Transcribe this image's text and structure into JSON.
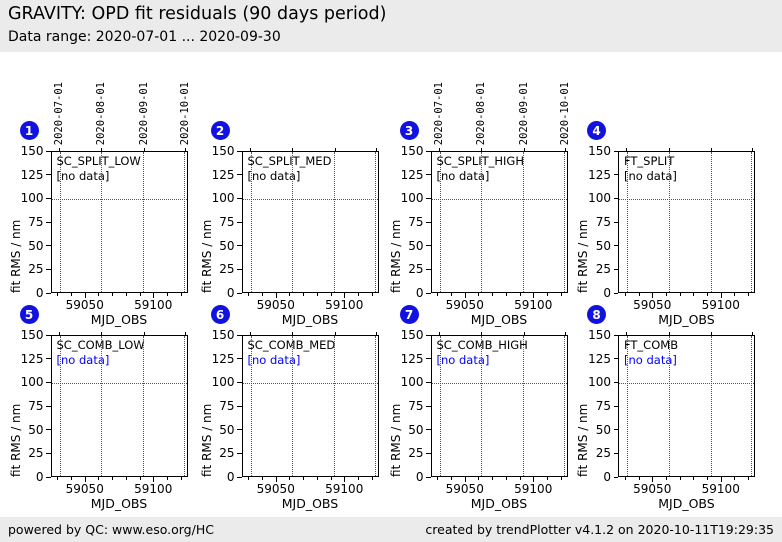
{
  "header": {
    "title": "GRAVITY: OPD fit residuals (90 days period)",
    "subtitle": "Data range: 2020-07-01 ... 2020-09-30"
  },
  "footer": {
    "left": "powered by QC: www.eso.org/HC",
    "right": "created by trendPlotter v4.1.2 on 2020-10-11T19:29:35"
  },
  "colors": {
    "badge_blue": "#1212e0",
    "nodata_blue": "#0000ff",
    "strip_gray": "#ebebeb",
    "grid_gray": "#555555"
  },
  "chart_data": [
    {
      "panel_number": 1,
      "type": "scatter",
      "title": "SC_SPLIT_LOW",
      "annotation": "[no data]",
      "annotation_color": "#000000",
      "x": [],
      "y": [],
      "xlabel": "MJD_OBS",
      "ylabel": "fit RMS / nm",
      "xlim": [
        59025,
        59125
      ],
      "ylim": [
        0,
        150
      ],
      "xticks": [
        59050,
        59100
      ],
      "xticks_minor": [
        59030,
        59040,
        59050,
        59060,
        59070,
        59080,
        59090,
        59100,
        59110,
        59120
      ],
      "yticks": [
        0,
        25,
        50,
        75,
        100,
        125,
        150
      ],
      "month_lines_mjd": [
        59031,
        59062,
        59093,
        59123
      ],
      "top_axis_dates": [
        "2020-07-01",
        "2020-08-01",
        "2020-09-01",
        "2020-10-01"
      ],
      "hline_y": 100,
      "grid": "dotted"
    },
    {
      "panel_number": 2,
      "type": "scatter",
      "title": "SC_SPLIT_MED",
      "annotation": "[no data]",
      "annotation_color": "#000000",
      "x": [],
      "y": [],
      "xlabel": "MJD_OBS",
      "ylabel": "fit RMS / nm",
      "xlim": [
        59025,
        59125
      ],
      "ylim": [
        0,
        150
      ],
      "xticks": [
        59050,
        59100
      ],
      "xticks_minor": [
        59030,
        59040,
        59050,
        59060,
        59070,
        59080,
        59090,
        59100,
        59110,
        59120
      ],
      "yticks": [
        0,
        25,
        50,
        75,
        100,
        125,
        150
      ],
      "month_lines_mjd": [
        59031,
        59062,
        59093,
        59123
      ],
      "top_axis_dates": [],
      "hline_y": 100,
      "grid": "dotted"
    },
    {
      "panel_number": 3,
      "type": "scatter",
      "title": "SC_SPLIT_HIGH",
      "annotation": "[no data]",
      "annotation_color": "#000000",
      "x": [],
      "y": [],
      "xlabel": "MJD_OBS",
      "ylabel": "fit RMS / nm",
      "xlim": [
        59025,
        59125
      ],
      "ylim": [
        0,
        150
      ],
      "xticks": [
        59050,
        59100
      ],
      "xticks_minor": [
        59030,
        59040,
        59050,
        59060,
        59070,
        59080,
        59090,
        59100,
        59110,
        59120
      ],
      "yticks": [
        0,
        25,
        50,
        75,
        100,
        125,
        150
      ],
      "month_lines_mjd": [
        59031,
        59062,
        59093,
        59123
      ],
      "top_axis_dates": [
        "2020-07-01",
        "2020-08-01",
        "2020-09-01",
        "2020-10-01"
      ],
      "hline_y": 100,
      "grid": "dotted"
    },
    {
      "panel_number": 4,
      "type": "scatter",
      "title": "FT_SPLIT",
      "annotation": "[no data]",
      "annotation_color": "#000000",
      "x": [],
      "y": [],
      "xlabel": "MJD_OBS",
      "ylabel": "fit RMS / nm",
      "xlim": [
        59025,
        59125
      ],
      "ylim": [
        0,
        150
      ],
      "xticks": [
        59050,
        59100
      ],
      "xticks_minor": [
        59030,
        59040,
        59050,
        59060,
        59070,
        59080,
        59090,
        59100,
        59110,
        59120
      ],
      "yticks": [
        0,
        25,
        50,
        75,
        100,
        125,
        150
      ],
      "month_lines_mjd": [
        59031,
        59062,
        59093,
        59123
      ],
      "top_axis_dates": [],
      "hline_y": 100,
      "grid": "dotted"
    },
    {
      "panel_number": 5,
      "type": "scatter",
      "title": "SC_COMB_LOW",
      "annotation": "[no data]",
      "annotation_color": "#0000ff",
      "x": [],
      "y": [],
      "xlabel": "MJD_OBS",
      "ylabel": "fit RMS / nm",
      "xlim": [
        59025,
        59125
      ],
      "ylim": [
        0,
        150
      ],
      "xticks": [
        59050,
        59100
      ],
      "xticks_minor": [
        59030,
        59040,
        59050,
        59060,
        59070,
        59080,
        59090,
        59100,
        59110,
        59120
      ],
      "yticks": [
        0,
        25,
        50,
        75,
        100,
        125,
        150
      ],
      "month_lines_mjd": [
        59031,
        59062,
        59093,
        59123
      ],
      "top_axis_dates": [],
      "hline_y": 100,
      "grid": "dotted"
    },
    {
      "panel_number": 6,
      "type": "scatter",
      "title": "SC_COMB_MED",
      "annotation": "[no data]",
      "annotation_color": "#0000ff",
      "x": [],
      "y": [],
      "xlabel": "MJD_OBS",
      "ylabel": "fit RMS / nm",
      "xlim": [
        59025,
        59125
      ],
      "ylim": [
        0,
        150
      ],
      "xticks": [
        59050,
        59100
      ],
      "xticks_minor": [
        59030,
        59040,
        59050,
        59060,
        59070,
        59080,
        59090,
        59100,
        59110,
        59120
      ],
      "yticks": [
        0,
        25,
        50,
        75,
        100,
        125,
        150
      ],
      "month_lines_mjd": [
        59031,
        59062,
        59093,
        59123
      ],
      "top_axis_dates": [],
      "hline_y": 100,
      "grid": "dotted"
    },
    {
      "panel_number": 7,
      "type": "scatter",
      "title": "SC_COMB_HIGH",
      "annotation": "[no data]",
      "annotation_color": "#0000ff",
      "x": [],
      "y": [],
      "xlabel": "MJD_OBS",
      "ylabel": "fit RMS / nm",
      "xlim": [
        59025,
        59125
      ],
      "ylim": [
        0,
        150
      ],
      "xticks": [
        59050,
        59100
      ],
      "xticks_minor": [
        59030,
        59040,
        59050,
        59060,
        59070,
        59080,
        59090,
        59100,
        59110,
        59120
      ],
      "yticks": [
        0,
        25,
        50,
        75,
        100,
        125,
        150
      ],
      "month_lines_mjd": [
        59031,
        59062,
        59093,
        59123
      ],
      "top_axis_dates": [],
      "hline_y": 100,
      "grid": "dotted"
    },
    {
      "panel_number": 8,
      "type": "scatter",
      "title": "FT_COMB",
      "annotation": "[no data]",
      "annotation_color": "#0000ff",
      "x": [],
      "y": [],
      "xlabel": "MJD_OBS",
      "ylabel": "fit RMS / nm",
      "xlim": [
        59025,
        59125
      ],
      "ylim": [
        0,
        150
      ],
      "xticks": [
        59050,
        59100
      ],
      "xticks_minor": [
        59030,
        59040,
        59050,
        59060,
        59070,
        59080,
        59090,
        59100,
        59110,
        59120
      ],
      "yticks": [
        0,
        25,
        50,
        75,
        100,
        125,
        150
      ],
      "month_lines_mjd": [
        59031,
        59062,
        59093,
        59123
      ],
      "top_axis_dates": [],
      "hline_y": 100,
      "grid": "dotted"
    }
  ]
}
